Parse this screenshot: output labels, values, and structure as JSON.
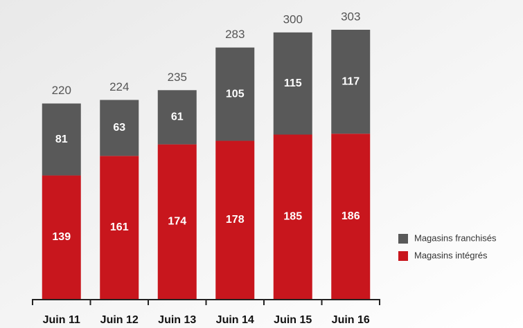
{
  "chart_data": {
    "type": "stacked-bar",
    "categories": [
      "Juin 11",
      "Juin 12",
      "Juin 13",
      "Juin 14",
      "Juin 15",
      "Juin 16"
    ],
    "series": [
      {
        "name": "Magasins intégrés",
        "color": "#c8161d",
        "values": [
          139,
          161,
          174,
          178,
          185,
          186
        ]
      },
      {
        "name": "Magasins franchisés",
        "color": "#595959",
        "values": [
          81,
          63,
          61,
          105,
          115,
          117
        ]
      }
    ],
    "totals": [
      220,
      224,
      235,
      283,
      300,
      303
    ],
    "legend": "right"
  }
}
